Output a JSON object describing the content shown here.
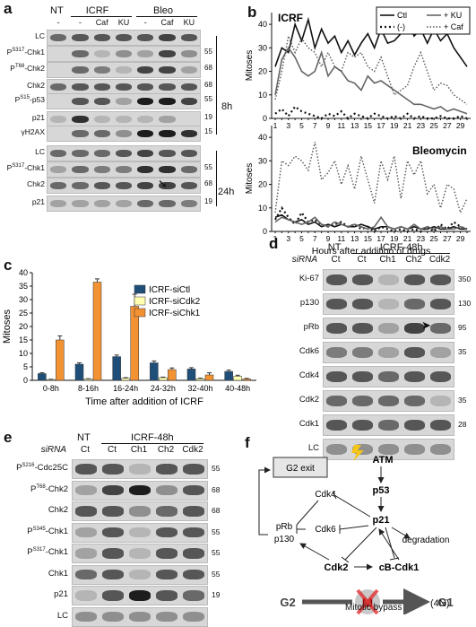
{
  "panel_a": {
    "label": "a",
    "top_headers": [
      "NT",
      "ICRF",
      "Bleo"
    ],
    "sub_headers": [
      "-",
      "-",
      "Caf",
      "KU",
      "-",
      "Caf",
      "KU"
    ],
    "time_8h": "8h",
    "time_24h": "24h",
    "rows_8h": [
      {
        "label": "LC",
        "mw": ""
      },
      {
        "label": "P",
        "sup": "S317",
        "tail": "-Chk1",
        "mw": "55"
      },
      {
        "label": "P",
        "sup": "T68",
        "tail": "-Chk2",
        "mw": "68"
      },
      {
        "label": "Chk2",
        "mw": "68"
      },
      {
        "label": "P",
        "sup": "S15",
        "tail": "-p53",
        "mw": "55"
      },
      {
        "label": "p21",
        "mw": "19"
      },
      {
        "label": "γH2AX",
        "mw": "15"
      }
    ],
    "rows_24h": [
      {
        "label": "LC",
        "mw": ""
      },
      {
        "label": "P",
        "sup": "S317",
        "tail": "-Chk1",
        "mw": "55"
      },
      {
        "label": "Chk2",
        "mw": "68"
      },
      {
        "label": "p21",
        "mw": "19"
      }
    ]
  },
  "panel_b": {
    "label": "b",
    "legend": [
      "Ctl",
      "(-)",
      "+ KU",
      "+ Caf"
    ],
    "chart_data": [
      {
        "type": "line",
        "title": "ICRF",
        "ylabel": "Mitoses",
        "ylim": [
          0,
          45
        ],
        "yticks": [
          0,
          10,
          20,
          30,
          40
        ],
        "x": [
          1,
          2,
          3,
          4,
          5,
          6,
          7,
          8,
          9,
          10,
          11,
          12,
          13,
          14,
          15,
          16,
          17,
          18,
          19,
          20,
          21,
          22,
          23,
          24,
          25,
          26,
          27,
          28,
          29,
          30
        ],
        "series": [
          {
            "name": "Ctl",
            "values": [
              22,
              30,
              28,
              40,
              33,
              42,
              30,
              38,
              32,
              35,
              28,
              33,
              27,
              32,
              36,
              30,
              38,
              32,
              33,
              36,
              42,
              35,
              38,
              32,
              38,
              33,
              36,
              30,
              26,
              22
            ]
          },
          {
            "name": "(-)",
            "values": [
              2,
              4,
              1,
              5,
              3,
              2,
              1,
              0,
              2,
              1,
              3,
              0,
              2,
              1,
              0,
              2,
              1,
              0,
              1,
              0,
              2,
              0,
              1,
              0,
              0,
              1,
              0,
              0,
              1,
              0
            ]
          },
          {
            "name": "+ KU",
            "values": [
              10,
              25,
              30,
              26,
              20,
              18,
              20,
              28,
              18,
              22,
              20,
              16,
              15,
              12,
              18,
              15,
              16,
              14,
              12,
              10,
              8,
              6,
              6,
              5,
              4,
              5,
              3,
              4,
              3,
              2
            ]
          },
          {
            "name": "+ Caf",
            "values": [
              8,
              20,
              35,
              28,
              34,
              30,
              28,
              22,
              28,
              22,
              20,
              28,
              26,
              28,
              22,
              20,
              26,
              18,
              10,
              12,
              14,
              22,
              28,
              20,
              12,
              15,
              14,
              10,
              8,
              6
            ]
          }
        ]
      },
      {
        "type": "line",
        "title": "Bleomycin",
        "ylabel": "Mitoses",
        "xlabel": "Hours after addition of drugs",
        "ylim": [
          0,
          45
        ],
        "yticks": [
          0,
          10,
          20,
          30,
          40
        ],
        "x": [
          1,
          2,
          3,
          4,
          5,
          6,
          7,
          8,
          9,
          10,
          11,
          12,
          13,
          14,
          15,
          16,
          17,
          18,
          19,
          20,
          21,
          22,
          23,
          24,
          25,
          26,
          27,
          28,
          29,
          30
        ],
        "xticks": [
          1,
          3,
          5,
          7,
          9,
          11,
          13,
          15,
          17,
          19,
          21,
          23,
          25,
          27,
          29
        ],
        "series": [
          {
            "name": "Ctl",
            "values": [
              6,
              7,
              5,
              4,
              5,
              3,
              4,
              2,
              3,
              2,
              3,
              2,
              2,
              3,
              2,
              1,
              2,
              2,
              1,
              2,
              1,
              2,
              1,
              1,
              2,
              1,
              1,
              2,
              1,
              1
            ]
          },
          {
            "name": "(-)",
            "values": [
              5,
              10,
              6,
              3,
              8,
              4,
              5,
              3,
              2,
              3,
              4,
              2,
              3,
              1,
              2,
              0,
              2,
              1,
              0,
              1,
              0,
              1,
              0,
              2,
              0,
              3,
              1,
              4,
              2,
              1
            ]
          },
          {
            "name": "+ KU",
            "values": [
              4,
              6,
              5,
              4,
              3,
              4,
              6,
              3,
              2,
              4,
              3,
              2,
              3,
              2,
              1,
              2,
              6,
              2,
              1,
              2,
              1,
              3,
              1,
              2,
              1,
              2,
              1,
              1,
              2,
              1
            ]
          },
          {
            "name": "+ Caf",
            "values": [
              8,
              30,
              28,
              32,
              30,
              26,
              38,
              22,
              25,
              30,
              20,
              28,
              18,
              32,
              22,
              12,
              30,
              22,
              32,
              14,
              30,
              24,
              30,
              16,
              20,
              10,
              20,
              18,
              8,
              14
            ]
          }
        ]
      }
    ]
  },
  "panel_c": {
    "label": "c",
    "chart_data": {
      "type": "bar",
      "categories": [
        "0-8h",
        "8-16h",
        "16-24h",
        "24-32h",
        "32-40h",
        "40-48h"
      ],
      "series": [
        {
          "name": "ICRF-siCtl",
          "color": "#1f4e79",
          "values": [
            2.5,
            6,
            8.8,
            6.5,
            4.2,
            3.3
          ],
          "errors": [
            0.3,
            0.5,
            0.6,
            0.7,
            0.5,
            0.5
          ]
        },
        {
          "name": "ICRF-siCdk2",
          "color": "#ffffb0",
          "values": [
            0.3,
            0.5,
            0.8,
            1.0,
            0.6,
            1.5
          ],
          "errors": [
            0.1,
            0.1,
            0.2,
            0.2,
            0.2,
            0.4
          ]
        },
        {
          "name": "ICRF-siChk1",
          "color": "#f39232",
          "values": [
            15,
            36.5,
            27.5,
            4,
            2,
            0.5
          ],
          "errors": [
            1.5,
            1.2,
            4.5,
            0.6,
            0.8,
            0.2
          ]
        }
      ],
      "xlabel": "Time after addition of ICRF",
      "ylabel": "Mitoses",
      "ylim": [
        0,
        40
      ],
      "yticks": [
        0,
        5,
        10,
        15,
        20,
        25,
        30,
        35,
        40
      ]
    }
  },
  "panel_d": {
    "label": "d",
    "header_nt": "NT",
    "header_group": "ICRF-48h",
    "sirna_label": "siRNA",
    "lanes": [
      "Ct",
      "Ct",
      "Ch1",
      "Ch2",
      "Cdk2"
    ],
    "rows": [
      {
        "label": "Ki-67",
        "mw": "350"
      },
      {
        "label": "p130",
        "mw": "130"
      },
      {
        "label": "pRb",
        "mw": "95"
      },
      {
        "label": "Cdk6",
        "mw": "35"
      },
      {
        "label": "Cdk4",
        "mw": ""
      },
      {
        "label": "Cdk2",
        "mw": "35"
      },
      {
        "label": "Cdk1",
        "mw": "28"
      },
      {
        "label": "LC",
        "mw": ""
      }
    ]
  },
  "panel_e": {
    "label": "e",
    "header_nt": "NT",
    "header_group": "ICRF-48h",
    "sirna_label": "siRNA",
    "lanes": [
      "Ct",
      "Ct",
      "Ch1",
      "Ch2",
      "Cdk2"
    ],
    "rows": [
      {
        "label": "P",
        "sup": "S216",
        "tail": "-Cdc25C",
        "mw": "55"
      },
      {
        "label": "P",
        "sup": "T68",
        "tail": "-Chk2",
        "mw": "68"
      },
      {
        "label": "Chk2",
        "mw": "68"
      },
      {
        "label": "P",
        "sup": "S345",
        "tail": "-Chk1",
        "mw": "55"
      },
      {
        "label": "P",
        "sup": "S317",
        "tail": "-Chk1",
        "mw": "55"
      },
      {
        "label": "Chk1",
        "mw": "55"
      },
      {
        "label": "p21",
        "mw": "19"
      },
      {
        "label": "LC",
        "mw": ""
      }
    ]
  },
  "panel_f": {
    "label": "f",
    "g2_exit": "G2 exit",
    "atm": "ATM",
    "p53": "p53",
    "p21": "p21",
    "cdk4": "Cdk4",
    "prb": "pRb",
    "cdk6": "Cdk6",
    "p130": "p130",
    "degradation": "degradation",
    "cdk2": "Cdk2",
    "cb_cdk1": "cB-Cdk1",
    "g2": "G2",
    "m": "M",
    "g1": "G1",
    "n4": "(4N)",
    "bypass": "Mitotic bypass"
  }
}
